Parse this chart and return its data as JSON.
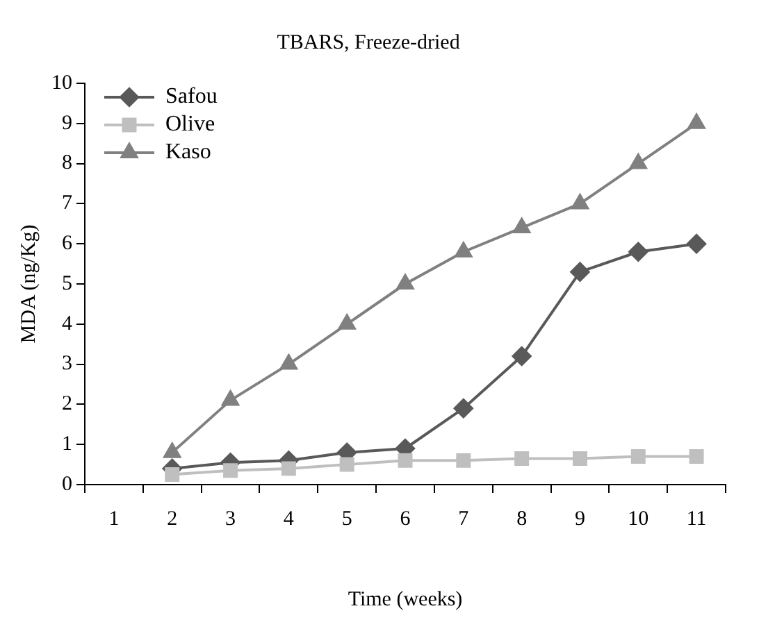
{
  "chart_data": {
    "type": "line",
    "title": "TBARS, Freeze-dried",
    "xlabel": "Time (weeks)",
    "ylabel": "MDA (ng/Kg)",
    "categories": [
      "1",
      "2",
      "3",
      "4",
      "5",
      "6",
      "7",
      "8",
      "9",
      "10",
      "11"
    ],
    "ylim": [
      0,
      10
    ],
    "yticks": [
      0,
      1,
      2,
      3,
      4,
      5,
      6,
      7,
      8,
      9,
      10
    ],
    "grid": false,
    "legend": "top left",
    "line_style": "solid",
    "series": [
      {
        "name": "Safou",
        "color": "#595959",
        "marker": "diamond",
        "values": [
          null,
          0.4,
          0.55,
          0.6,
          0.8,
          0.9,
          1.9,
          3.2,
          5.3,
          5.8,
          6.0
        ]
      },
      {
        "name": "Olive",
        "color": "#bfbfbf",
        "marker": "square",
        "values": [
          null,
          0.25,
          0.35,
          0.4,
          0.5,
          0.6,
          0.6,
          0.65,
          0.65,
          0.7,
          0.7
        ]
      },
      {
        "name": "Kaso",
        "color": "#808080",
        "marker": "triangle",
        "values": [
          null,
          0.8,
          2.1,
          3.0,
          4.0,
          5.0,
          5.8,
          6.4,
          7.0,
          8.0,
          9.0
        ]
      }
    ]
  }
}
